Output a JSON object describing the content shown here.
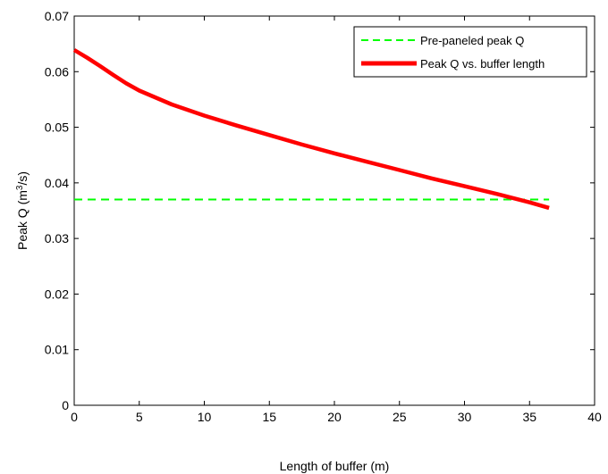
{
  "chart_data": {
    "type": "line",
    "xlabel": "Length of buffer (m)",
    "ylabel_main": "Peak Q (m",
    "ylabel_sup": "3",
    "ylabel_tail": "/s)",
    "xlim": [
      0,
      40
    ],
    "ylim": [
      0,
      0.07
    ],
    "xticks": [
      0,
      5,
      10,
      15,
      20,
      25,
      30,
      35,
      40
    ],
    "yticks": [
      0,
      0.01,
      0.02,
      0.03,
      0.04,
      0.05,
      0.06,
      0.07
    ],
    "ytick_labels": [
      "0",
      "0.01",
      "0.02",
      "0.03",
      "0.04",
      "0.05",
      "0.06",
      "0.07"
    ],
    "grid": false,
    "legend_position": "top-right",
    "series": [
      {
        "name": "Pre-paneled peak Q",
        "color": "#00ff00",
        "style": "dashed",
        "x": [
          0,
          36.5
        ],
        "y": [
          0.037,
          0.037
        ]
      },
      {
        "name": "Peak Q vs. buffer length",
        "color": "#ff0000",
        "style": "solid",
        "x": [
          0,
          1,
          2,
          3,
          4,
          5,
          7.5,
          10,
          12.5,
          15,
          17.5,
          20,
          22.5,
          25,
          27.5,
          30,
          32.5,
          35,
          36.5
        ],
        "y": [
          0.0639,
          0.0625,
          0.061,
          0.0594,
          0.0579,
          0.0566,
          0.0541,
          0.0521,
          0.0503,
          0.0486,
          0.0469,
          0.0453,
          0.0438,
          0.0423,
          0.0408,
          0.0394,
          0.038,
          0.0365,
          0.0355
        ]
      }
    ]
  }
}
